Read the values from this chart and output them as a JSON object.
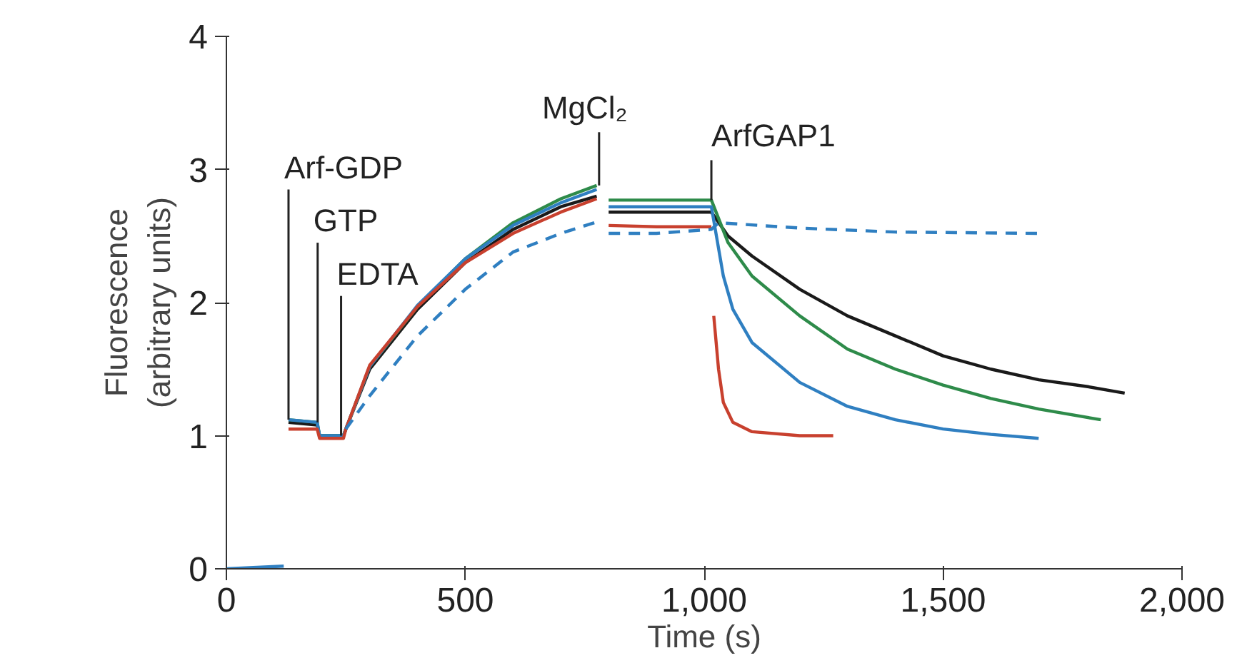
{
  "chart_data": {
    "type": "line",
    "xlabel": "Time (s)",
    "ylabel": "Fluorescence\n(arbitrary units)",
    "xlim": [
      0,
      2000
    ],
    "ylim": [
      0,
      4
    ],
    "xticks": [
      0,
      500,
      {
        "value": 1000,
        "label": "1,000"
      },
      {
        "value": 1500,
        "label": "1,500"
      },
      {
        "value": 2000,
        "label": "2,000"
      }
    ],
    "yticks": [
      0,
      1,
      2,
      3,
      4
    ],
    "grid": false,
    "series": [
      {
        "color": "#1a1a1a",
        "x": [
          130,
          190,
          195,
          245,
          250,
          300,
          400,
          500,
          600,
          700,
          775,
          790,
          800,
          900,
          1015,
          1050,
          1100,
          1200,
          1300,
          1400,
          1500,
          1600,
          1700,
          1800,
          1880
        ],
        "values": [
          1.1,
          1.08,
          1.0,
          1.0,
          1.05,
          1.5,
          1.95,
          2.3,
          2.55,
          2.72,
          2.8,
          null,
          2.68,
          2.68,
          2.68,
          2.5,
          2.35,
          2.1,
          1.9,
          1.75,
          1.6,
          1.5,
          1.42,
          1.37,
          1.32
        ]
      },
      {
        "color": "#2e8b4a",
        "x": [
          130,
          190,
          195,
          245,
          250,
          300,
          400,
          500,
          600,
          700,
          775,
          790,
          800,
          900,
          1015,
          1050,
          1100,
          1200,
          1300,
          1400,
          1500,
          1600,
          1700,
          1830
        ],
        "values": [
          1.12,
          1.1,
          1.0,
          1.0,
          1.05,
          1.52,
          1.97,
          2.33,
          2.6,
          2.78,
          2.88,
          null,
          2.77,
          2.77,
          2.77,
          2.45,
          2.2,
          1.9,
          1.65,
          1.5,
          1.38,
          1.28,
          1.2,
          1.12
        ]
      },
      {
        "color": "#2f7fc1",
        "x": [
          0,
          120,
          125,
          130,
          190,
          195,
          245,
          250,
          300,
          400,
          500,
          600,
          700,
          775,
          790,
          800,
          900,
          1015,
          1040,
          1060,
          1100,
          1200,
          1300,
          1400,
          1500,
          1600,
          1700
        ],
        "values": [
          0,
          0.02,
          null,
          1.12,
          1.1,
          1.0,
          1.0,
          1.05,
          1.52,
          1.98,
          2.33,
          2.58,
          2.75,
          2.85,
          null,
          2.72,
          2.72,
          2.72,
          2.2,
          1.95,
          1.7,
          1.4,
          1.22,
          1.12,
          1.05,
          1.01,
          0.98
        ]
      },
      {
        "color": "#c8402e",
        "x": [
          130,
          190,
          195,
          245,
          250,
          300,
          400,
          500,
          600,
          700,
          775,
          790,
          800,
          900,
          1015,
          1018,
          1020,
          1030,
          1040,
          1060,
          1100,
          1200,
          1270
        ],
        "values": [
          1.05,
          1.05,
          0.98,
          0.98,
          1.05,
          1.53,
          1.97,
          2.3,
          2.52,
          2.68,
          2.78,
          null,
          2.58,
          2.57,
          2.57,
          null,
          1.9,
          1.5,
          1.25,
          1.1,
          1.03,
          1.0,
          1.0
        ]
      },
      {
        "color": "#2f7fc1",
        "line_style": "dashed",
        "x": [
          250,
          300,
          400,
          500,
          600,
          700,
          770,
          790,
          800,
          900,
          1015,
          1030,
          1200,
          1400,
          1700
        ],
        "values": [
          1.05,
          1.3,
          1.75,
          2.1,
          2.38,
          2.52,
          2.6,
          null,
          2.52,
          2.52,
          2.55,
          2.6,
          2.56,
          2.53,
          2.52
        ]
      }
    ],
    "annotations": [
      {
        "text": "Arf-GDP",
        "x": 130,
        "y": 1.12
      },
      {
        "text": "GTP",
        "x": 191,
        "y": 1.1
      },
      {
        "text": "EDTA",
        "x": 240,
        "y": 1.0
      },
      {
        "text": "MgCl₂",
        "x": 780,
        "y": 2.88
      },
      {
        "text": "ArfGAP1",
        "x": 1015,
        "y": 2.77
      }
    ]
  }
}
